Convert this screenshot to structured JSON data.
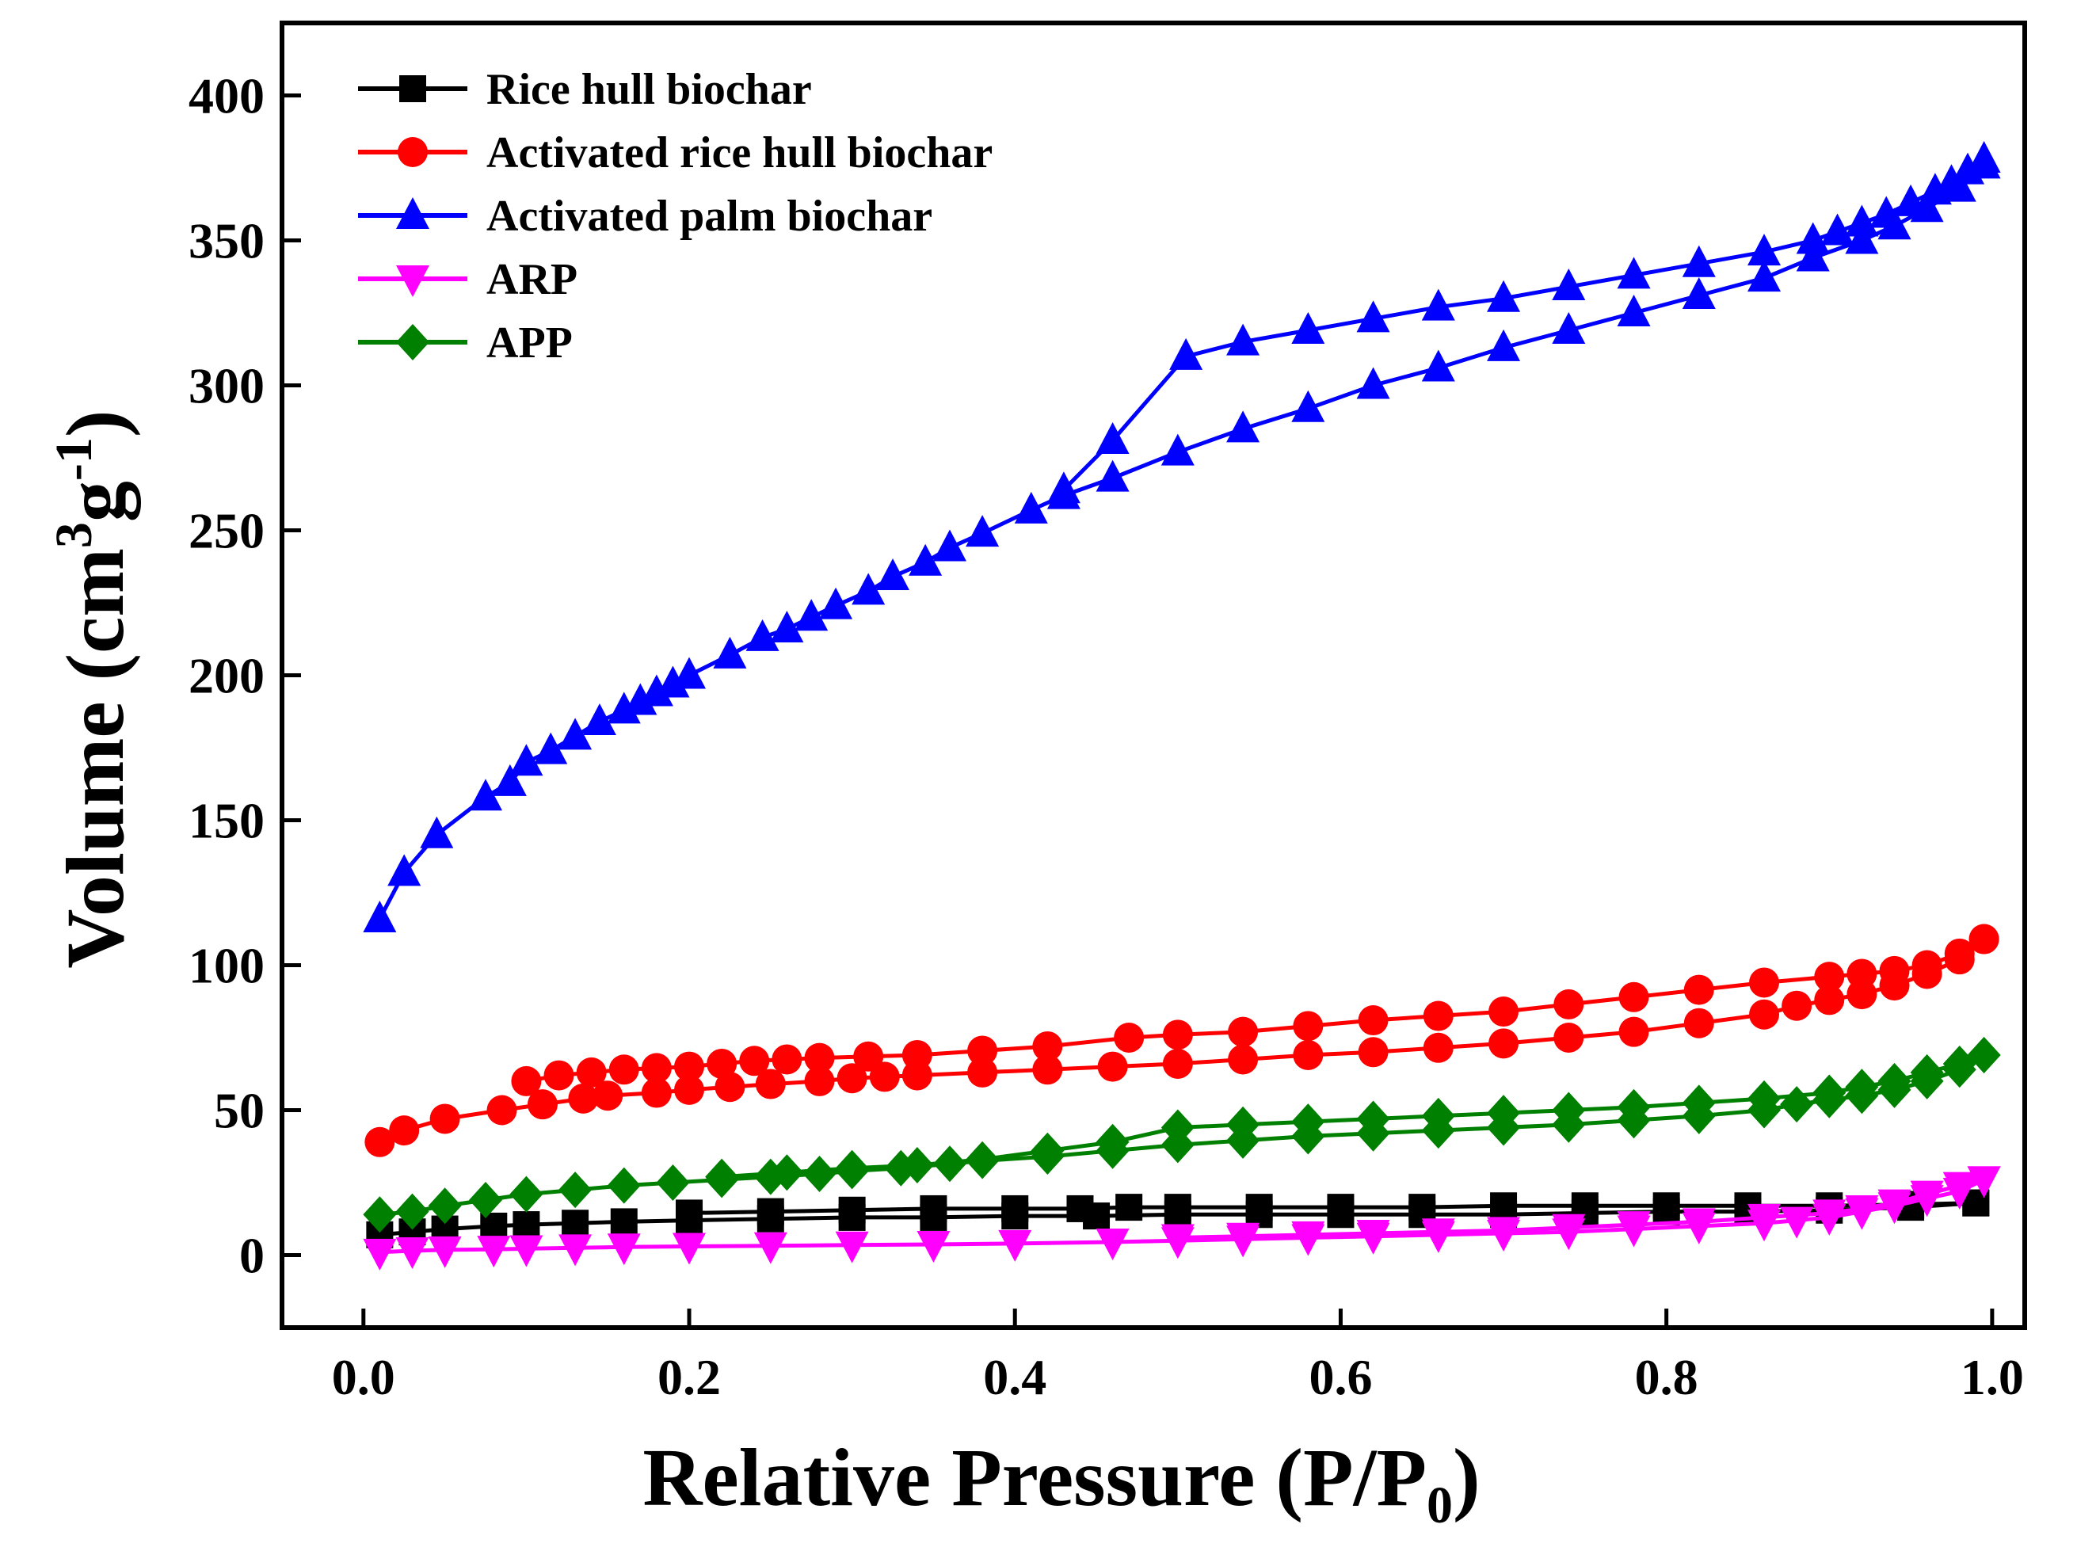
{
  "chart_data": {
    "type": "line",
    "title": "",
    "xlabel": {
      "main": "Relative Pressure (P/P",
      "sub": "0",
      "close": ")"
    },
    "ylabel": {
      "main": "Volume (cm",
      "sup1": "3",
      "mid": "g",
      "sup2": "-1",
      "close": ")"
    },
    "xlim": [
      -0.05,
      1.02
    ],
    "ylim": [
      -25,
      425
    ],
    "xticks": [
      0.0,
      0.2,
      0.4,
      0.6,
      0.8,
      1.0
    ],
    "xtick_labels": [
      "0.0",
      "0.2",
      "0.4",
      "0.6",
      "0.8",
      "1.0"
    ],
    "yticks": [
      0,
      50,
      100,
      150,
      200,
      250,
      300,
      350,
      400
    ],
    "ytick_labels": [
      "0",
      "50",
      "100",
      "150",
      "200",
      "250",
      "300",
      "350",
      "400"
    ],
    "legend_position": "top-left",
    "grid": false,
    "series": [
      {
        "name": "Rice hull biochar",
        "color": "#000000",
        "marker": "square",
        "adsorption": [
          [
            0.01,
            7
          ],
          [
            0.03,
            8
          ],
          [
            0.05,
            9
          ],
          [
            0.08,
            10
          ],
          [
            0.1,
            10.5
          ],
          [
            0.13,
            11
          ],
          [
            0.16,
            11.5
          ],
          [
            0.2,
            12
          ],
          [
            0.25,
            12.5
          ],
          [
            0.3,
            13
          ],
          [
            0.35,
            13
          ],
          [
            0.4,
            13.5
          ],
          [
            0.45,
            13.5
          ],
          [
            0.5,
            14
          ],
          [
            0.55,
            14
          ],
          [
            0.6,
            14
          ],
          [
            0.65,
            14
          ],
          [
            0.7,
            14
          ],
          [
            0.75,
            14.5
          ],
          [
            0.8,
            15
          ],
          [
            0.85,
            15
          ],
          [
            0.9,
            15.5
          ],
          [
            0.95,
            16.5
          ],
          [
            0.99,
            18
          ]
        ],
        "desorption": [
          [
            0.99,
            18
          ],
          [
            0.95,
            17.5
          ],
          [
            0.9,
            17
          ],
          [
            0.85,
            17
          ],
          [
            0.8,
            17
          ],
          [
            0.75,
            17
          ],
          [
            0.7,
            17
          ],
          [
            0.65,
            16.5
          ],
          [
            0.6,
            16.5
          ],
          [
            0.55,
            16.5
          ],
          [
            0.5,
            16.5
          ],
          [
            0.47,
            16.5
          ],
          [
            0.44,
            16
          ],
          [
            0.4,
            16
          ],
          [
            0.35,
            16
          ],
          [
            0.3,
            15.5
          ],
          [
            0.25,
            15
          ],
          [
            0.2,
            14.5
          ]
        ]
      },
      {
        "name": "Activated rice hull biochar",
        "color": "#ff0000",
        "marker": "circle",
        "adsorption": [
          [
            0.01,
            39
          ],
          [
            0.025,
            43
          ],
          [
            0.05,
            47
          ],
          [
            0.085,
            50
          ],
          [
            0.11,
            52
          ],
          [
            0.135,
            54
          ],
          [
            0.15,
            55
          ],
          [
            0.18,
            56
          ],
          [
            0.2,
            57
          ],
          [
            0.225,
            58
          ],
          [
            0.25,
            59
          ],
          [
            0.28,
            60
          ],
          [
            0.3,
            61
          ],
          [
            0.32,
            61.5
          ],
          [
            0.34,
            62
          ],
          [
            0.38,
            63
          ],
          [
            0.42,
            64
          ],
          [
            0.46,
            65
          ],
          [
            0.5,
            66
          ],
          [
            0.54,
            67.5
          ],
          [
            0.58,
            69
          ],
          [
            0.62,
            70
          ],
          [
            0.66,
            71.5
          ],
          [
            0.7,
            73
          ],
          [
            0.74,
            75
          ],
          [
            0.78,
            77
          ],
          [
            0.82,
            80
          ],
          [
            0.86,
            83
          ],
          [
            0.88,
            86
          ],
          [
            0.9,
            88
          ],
          [
            0.92,
            90
          ],
          [
            0.94,
            93
          ],
          [
            0.96,
            97
          ],
          [
            0.98,
            102
          ],
          [
            0.995,
            109
          ]
        ],
        "desorption": [
          [
            0.995,
            109
          ],
          [
            0.98,
            104
          ],
          [
            0.96,
            100
          ],
          [
            0.94,
            98
          ],
          [
            0.92,
            97
          ],
          [
            0.9,
            96
          ],
          [
            0.86,
            94
          ],
          [
            0.82,
            91.5
          ],
          [
            0.78,
            89
          ],
          [
            0.74,
            86.5
          ],
          [
            0.7,
            84
          ],
          [
            0.66,
            82.5
          ],
          [
            0.62,
            81
          ],
          [
            0.58,
            79
          ],
          [
            0.54,
            77
          ],
          [
            0.5,
            76
          ],
          [
            0.47,
            75
          ],
          [
            0.42,
            72
          ],
          [
            0.38,
            70.5
          ],
          [
            0.34,
            69
          ],
          [
            0.31,
            68.5
          ],
          [
            0.28,
            68
          ],
          [
            0.26,
            67.5
          ],
          [
            0.24,
            67
          ],
          [
            0.22,
            66
          ],
          [
            0.2,
            65
          ],
          [
            0.18,
            64.5
          ],
          [
            0.16,
            64
          ],
          [
            0.14,
            63
          ],
          [
            0.12,
            62
          ],
          [
            0.1,
            60
          ]
        ]
      },
      {
        "name": "Activated palm biochar",
        "color": "#0000ff",
        "marker": "triangle-up",
        "adsorption": [
          [
            0.01,
            116
          ],
          [
            0.025,
            132
          ],
          [
            0.045,
            145
          ],
          [
            0.075,
            158
          ],
          [
            0.09,
            163
          ],
          [
            0.1,
            170
          ],
          [
            0.115,
            174
          ],
          [
            0.13,
            179
          ],
          [
            0.145,
            184
          ],
          [
            0.16,
            188
          ],
          [
            0.17,
            191
          ],
          [
            0.18,
            194
          ],
          [
            0.19,
            197
          ],
          [
            0.2,
            200
          ],
          [
            0.225,
            207
          ],
          [
            0.245,
            213
          ],
          [
            0.26,
            216
          ],
          [
            0.275,
            220
          ],
          [
            0.29,
            224
          ],
          [
            0.31,
            229
          ],
          [
            0.325,
            234
          ],
          [
            0.345,
            239
          ],
          [
            0.36,
            244
          ],
          [
            0.38,
            249
          ],
          [
            0.41,
            257
          ],
          [
            0.43,
            262
          ],
          [
            0.46,
            268
          ],
          [
            0.5,
            277
          ],
          [
            0.54,
            285
          ],
          [
            0.58,
            292
          ],
          [
            0.62,
            300
          ],
          [
            0.66,
            306
          ],
          [
            0.7,
            313
          ],
          [
            0.74,
            319
          ],
          [
            0.78,
            325
          ],
          [
            0.82,
            331
          ],
          [
            0.86,
            337
          ],
          [
            0.89,
            344
          ],
          [
            0.92,
            350
          ],
          [
            0.94,
            355
          ],
          [
            0.96,
            361
          ],
          [
            0.98,
            368
          ],
          [
            0.995,
            376
          ]
        ],
        "desorption": [
          [
            0.995,
            378
          ],
          [
            0.985,
            374
          ],
          [
            0.975,
            370
          ],
          [
            0.965,
            367
          ],
          [
            0.95,
            363
          ],
          [
            0.935,
            359
          ],
          [
            0.92,
            356
          ],
          [
            0.905,
            353
          ],
          [
            0.89,
            350
          ],
          [
            0.86,
            346
          ],
          [
            0.82,
            342
          ],
          [
            0.78,
            338
          ],
          [
            0.74,
            334
          ],
          [
            0.7,
            330
          ],
          [
            0.66,
            327
          ],
          [
            0.62,
            323
          ],
          [
            0.58,
            319
          ],
          [
            0.54,
            315
          ],
          [
            0.505,
            310
          ],
          [
            0.46,
            281
          ],
          [
            0.43,
            264
          ]
        ]
      },
      {
        "name": "ARP",
        "color": "#ff00ff",
        "marker": "triangle-down",
        "adsorption": [
          [
            0.01,
            1
          ],
          [
            0.03,
            1.5
          ],
          [
            0.05,
            1.8
          ],
          [
            0.08,
            2
          ],
          [
            0.1,
            2.2
          ],
          [
            0.13,
            2.5
          ],
          [
            0.16,
            2.8
          ],
          [
            0.2,
            3
          ],
          [
            0.25,
            3.2
          ],
          [
            0.3,
            3.5
          ],
          [
            0.35,
            3.7
          ],
          [
            0.4,
            4
          ],
          [
            0.46,
            4.5
          ],
          [
            0.5,
            5
          ],
          [
            0.54,
            5.5
          ],
          [
            0.58,
            6
          ],
          [
            0.62,
            6.5
          ],
          [
            0.66,
            7
          ],
          [
            0.7,
            7.5
          ],
          [
            0.74,
            8
          ],
          [
            0.78,
            9
          ],
          [
            0.82,
            10
          ],
          [
            0.86,
            11
          ],
          [
            0.88,
            12
          ],
          [
            0.9,
            13
          ],
          [
            0.92,
            15
          ],
          [
            0.94,
            17
          ],
          [
            0.96,
            19.5
          ],
          [
            0.98,
            22
          ],
          [
            0.995,
            26
          ]
        ],
        "desorption": [
          [
            0.995,
            26
          ],
          [
            0.98,
            24
          ],
          [
            0.96,
            21
          ],
          [
            0.94,
            18
          ],
          [
            0.92,
            16
          ],
          [
            0.9,
            14.5
          ],
          [
            0.86,
            13
          ],
          [
            0.82,
            11.5
          ],
          [
            0.78,
            10.5
          ],
          [
            0.74,
            9.5
          ],
          [
            0.7,
            8.5
          ],
          [
            0.66,
            8
          ],
          [
            0.62,
            7.5
          ],
          [
            0.58,
            7
          ],
          [
            0.54,
            6.5
          ],
          [
            0.5,
            6
          ]
        ]
      },
      {
        "name": "APP",
        "color": "#008000",
        "marker": "diamond",
        "adsorption": [
          [
            0.01,
            14
          ],
          [
            0.03,
            15
          ],
          [
            0.05,
            17
          ],
          [
            0.075,
            19
          ],
          [
            0.1,
            21
          ],
          [
            0.13,
            22.5
          ],
          [
            0.16,
            24
          ],
          [
            0.19,
            25
          ],
          [
            0.22,
            26
          ],
          [
            0.25,
            27
          ],
          [
            0.28,
            28
          ],
          [
            0.3,
            29
          ],
          [
            0.33,
            30
          ],
          [
            0.36,
            31.5
          ],
          [
            0.38,
            32.5
          ],
          [
            0.42,
            34
          ],
          [
            0.46,
            36
          ],
          [
            0.5,
            38
          ],
          [
            0.54,
            39.5
          ],
          [
            0.58,
            41
          ],
          [
            0.62,
            42
          ],
          [
            0.66,
            43
          ],
          [
            0.7,
            44
          ],
          [
            0.74,
            45
          ],
          [
            0.78,
            46.5
          ],
          [
            0.82,
            48
          ],
          [
            0.86,
            50
          ],
          [
            0.88,
            52
          ],
          [
            0.9,
            53.5
          ],
          [
            0.92,
            55
          ],
          [
            0.94,
            57
          ],
          [
            0.96,
            60
          ],
          [
            0.98,
            64
          ],
          [
            0.995,
            69
          ]
        ],
        "desorption": [
          [
            0.995,
            69
          ],
          [
            0.98,
            66
          ],
          [
            0.96,
            63
          ],
          [
            0.94,
            60
          ],
          [
            0.92,
            58
          ],
          [
            0.9,
            56
          ],
          [
            0.86,
            54
          ],
          [
            0.82,
            52.5
          ],
          [
            0.78,
            51
          ],
          [
            0.74,
            50
          ],
          [
            0.7,
            49
          ],
          [
            0.66,
            48
          ],
          [
            0.62,
            47
          ],
          [
            0.58,
            46
          ],
          [
            0.54,
            45
          ],
          [
            0.5,
            44
          ],
          [
            0.46,
            39
          ],
          [
            0.42,
            36
          ],
          [
            0.38,
            33
          ],
          [
            0.34,
            31
          ],
          [
            0.3,
            30
          ],
          [
            0.26,
            28.5
          ],
          [
            0.22,
            27
          ]
        ]
      }
    ]
  }
}
